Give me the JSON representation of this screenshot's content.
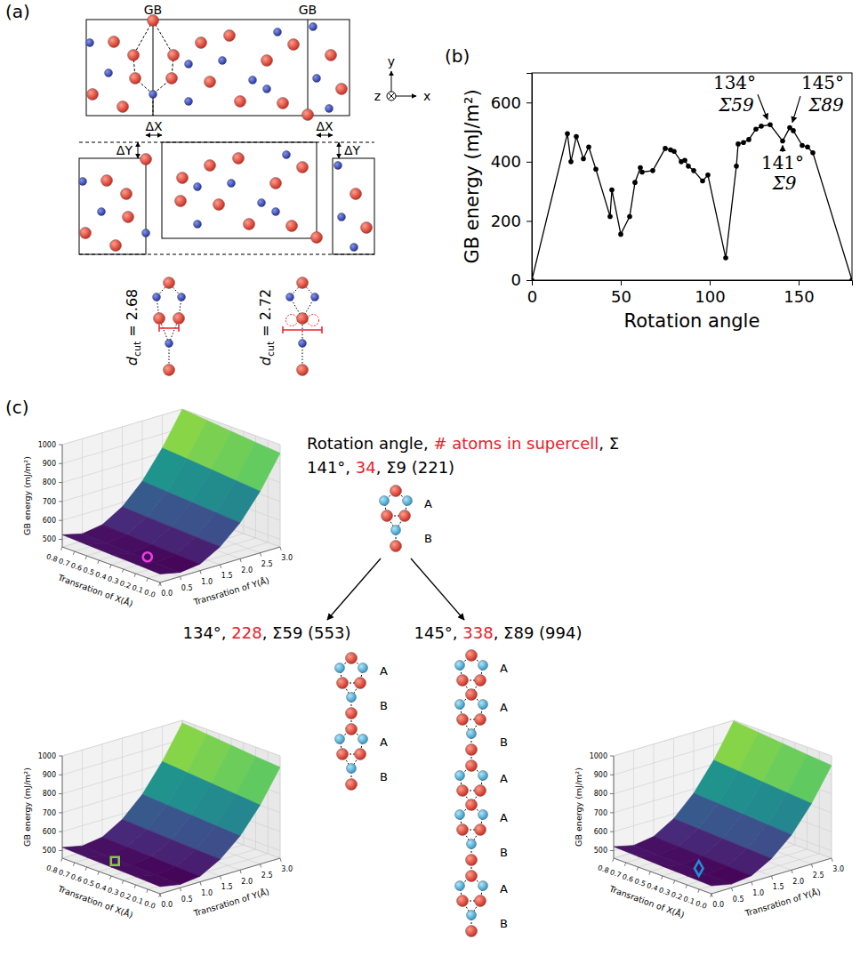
{
  "chart_data": [
    {
      "type": "line",
      "panel_label": "(b)",
      "x_label": "Rotation angle",
      "y_label": "GB energy (mJ/m²)",
      "x": [
        0,
        20,
        22,
        25,
        29,
        32,
        36,
        44,
        45,
        50,
        55,
        58,
        61,
        62,
        68,
        75,
        78,
        80,
        84,
        86,
        88,
        91,
        96,
        99,
        109,
        115,
        116,
        119,
        122,
        126,
        129,
        134,
        141,
        145,
        147,
        152,
        155,
        158,
        180
      ],
      "values": [
        0,
        495,
        400,
        485,
        410,
        450,
        375,
        215,
        305,
        155,
        215,
        330,
        380,
        365,
        370,
        445,
        440,
        435,
        400,
        405,
        385,
        370,
        335,
        355,
        75,
        385,
        460,
        465,
        475,
        510,
        520,
        525,
        470,
        515,
        505,
        455,
        450,
        430,
        0
      ],
      "color": "#000000",
      "marker": "circle",
      "xlim": [
        0,
        180
      ],
      "ylim": [
        0,
        700
      ],
      "xticks": [
        0,
        50,
        100,
        150
      ],
      "yticks": [
        0,
        200,
        400,
        600
      ],
      "annotations": [
        {
          "x": 134,
          "y": 525,
          "label": "134°",
          "sigma": "Σ59"
        },
        {
          "x": 145,
          "y": 515,
          "label": "145°",
          "sigma": "Σ89"
        },
        {
          "x": 141,
          "y": 470,
          "label": "141°",
          "sigma": "Σ9"
        }
      ]
    },
    {
      "type": "surface",
      "x_label": "Transration of X(Å)",
      "y_label": "Transration of Y(Å)",
      "z_label": "GB energy (mJ/m²)",
      "x": [
        0,
        0.2,
        0.4,
        0.6,
        0.8
      ],
      "y": [
        0,
        0.5,
        1,
        1.5,
        2,
        2.5,
        3
      ],
      "z": [
        [
          505,
          482,
          495,
          555,
          650,
          785,
          955
        ],
        [
          510,
          486,
          500,
          560,
          658,
          795,
          965
        ],
        [
          514,
          490,
          505,
          566,
          666,
          806,
          976
        ],
        [
          519,
          494,
          510,
          572,
          674,
          816,
          988
        ],
        [
          524,
          498,
          515,
          578,
          682,
          826,
          1000
        ]
      ],
      "xlim": [
        0,
        0.8
      ],
      "ylim": [
        0,
        3
      ],
      "zlim": [
        460,
        1000
      ],
      "xticks": [
        {
          "value": 0,
          "label": "0.0"
        },
        0.1,
        0.2,
        0.3,
        0.4,
        0.5,
        0.6,
        0.7,
        0.8
      ],
      "yticks": [
        {
          "value": 0,
          "label": "0.0"
        },
        0.5,
        {
          "value": 1,
          "label": "1.0"
        },
        1.5,
        {
          "value": 2,
          "label": "2.0"
        },
        2.5,
        {
          "value": 3,
          "label": "3.0"
        }
      ],
      "zticks": [
        500,
        600,
        700,
        800,
        900,
        1000
      ],
      "minimum": {
        "x": 0.3,
        "y": 0.6,
        "z": 487
      },
      "marker": "circle",
      "color": "#e83ee0"
    },
    {
      "type": "surface",
      "x_label": "Transration of X(Å)",
      "y_label": "Transration of Y(Å)",
      "z_label": "GB energy (mJ/m²)",
      "x": [
        0,
        0.2,
        0.4,
        0.6,
        0.8
      ],
      "y": [
        0,
        0.5,
        1,
        1.5,
        2,
        2.5,
        3
      ],
      "z": [
        [
          498,
          478,
          490,
          548,
          640,
          772,
          940
        ],
        [
          503,
          481,
          494,
          553,
          648,
          782,
          950
        ],
        [
          507,
          485,
          499,
          559,
          656,
          793,
          962
        ],
        [
          512,
          489,
          504,
          565,
          664,
          803,
          974
        ],
        [
          517,
          493,
          509,
          571,
          672,
          814,
          986
        ]
      ],
      "xlim": [
        0,
        0.8
      ],
      "ylim": [
        0,
        3
      ],
      "zlim": [
        460,
        1000
      ],
      "xticks": [
        {
          "value": 0,
          "label": "0.0"
        },
        0.1,
        0.2,
        0.3,
        0.4,
        0.5,
        0.6,
        0.7,
        0.8
      ],
      "yticks": [
        {
          "value": 0,
          "label": "0.0"
        },
        0.5,
        {
          "value": 1,
          "label": "1.0"
        },
        1.5,
        {
          "value": 2,
          "label": "2.0"
        },
        2.5,
        {
          "value": 3,
          "label": "3.0"
        }
      ],
      "zticks": [
        500,
        600,
        700,
        800,
        900,
        1000
      ],
      "minimum": {
        "x": 0.5,
        "y": 0.4,
        "z": 490
      },
      "marker": "square",
      "color": "#8dc63f"
    },
    {
      "type": "surface",
      "x_label": "Transration of X(Å)",
      "y_label": "Transration of Y(Å)",
      "z_label": "GB energy (mJ/m²)",
      "x": [
        0,
        0.2,
        0.4,
        0.6,
        0.8
      ],
      "y": [
        0,
        0.5,
        1,
        1.5,
        2,
        2.5,
        3
      ],
      "z": [
        [
          502,
          480,
          493,
          552,
          646,
          780,
          950
        ],
        [
          507,
          484,
          497,
          557,
          654,
          790,
          960
        ],
        [
          511,
          488,
          502,
          563,
          662,
          800,
          972
        ],
        [
          516,
          492,
          507,
          569,
          670,
          811,
          984
        ],
        [
          521,
          496,
          512,
          575,
          678,
          821,
          996
        ]
      ],
      "xlim": [
        0,
        0.8
      ],
      "ylim": [
        0,
        3
      ],
      "zlim": [
        460,
        1000
      ],
      "xticks": [
        {
          "value": 0,
          "label": "0.0"
        },
        0.1,
        0.2,
        0.3,
        0.4,
        0.5,
        0.6,
        0.7,
        0.8
      ],
      "yticks": [
        {
          "value": 0,
          "label": "0.0"
        },
        0.5,
        {
          "value": 1,
          "label": "1.0"
        },
        1.5,
        {
          "value": 2,
          "label": "2.0"
        },
        2.5,
        {
          "value": 3,
          "label": "3.0"
        }
      ],
      "zticks": [
        500,
        600,
        700,
        800,
        900,
        1000
      ],
      "minimum": {
        "x": 0.3,
        "y": 0.6,
        "z": 486
      },
      "marker": "diamond",
      "color": "#1e90d6"
    }
  ],
  "panel_a": {
    "label": "(a)",
    "gb_labels": [
      "GB",
      "GB"
    ],
    "shift_x": "ΔX",
    "shift_y": "ΔY",
    "axis_labels": [
      "y",
      "x",
      "z"
    ],
    "cutoffs": [
      {
        "symbol": "d",
        "subscript": "cut",
        "relation": "=",
        "value": 2.68
      },
      {
        "symbol": "d",
        "subscript": "cut",
        "relation": "=",
        "value": 2.72
      }
    ]
  },
  "panel_c": {
    "label": "(c)",
    "header": [
      {
        "text": "Rotation angle, "
      },
      {
        "text": "# atoms in supercell",
        "color": "#e8202a"
      },
      {
        "text": ", Σ"
      }
    ],
    "cases": [
      {
        "title": [
          {
            "text": "141°, "
          },
          {
            "text": "34",
            "color": "#e8202a"
          },
          {
            "text": ", Σ9 (221)"
          }
        ],
        "stacking": [
          "A",
          "B"
        ]
      },
      {
        "title": [
          {
            "text": "134°, "
          },
          {
            "text": "228",
            "color": "#e8202a"
          },
          {
            "text": ", Σ59 (553)"
          }
        ],
        "stacking": [
          "A",
          "B",
          "A",
          "B"
        ]
      },
      {
        "title": [
          {
            "text": "145°, "
          },
          {
            "text": "338",
            "color": "#e8202a"
          },
          {
            "text": ", Σ89 (994)"
          }
        ],
        "stacking": [
          "A",
          "A",
          "B",
          "A",
          "A",
          "B",
          "A",
          "B"
        ]
      }
    ]
  }
}
